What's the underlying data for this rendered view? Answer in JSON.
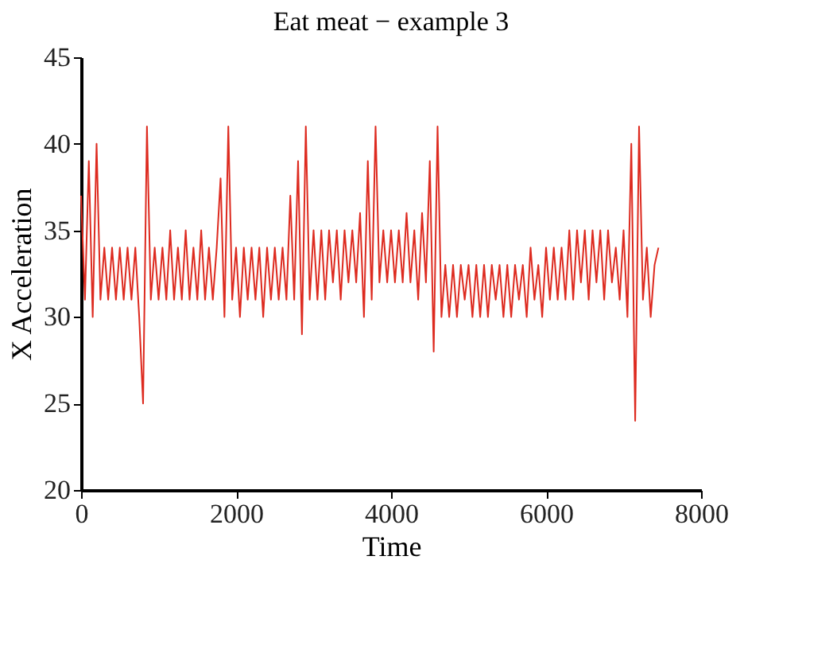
{
  "chart_data": {
    "type": "line",
    "title": "Eat meat − example 3",
    "xlabel": "Time",
    "ylabel": "X Acceleration",
    "x": [
      0,
      50,
      100,
      150,
      200,
      250,
      300,
      350,
      400,
      450,
      500,
      550,
      600,
      650,
      700,
      750,
      800,
      850,
      900,
      950,
      1000,
      1050,
      1100,
      1150,
      1200,
      1250,
      1300,
      1350,
      1400,
      1450,
      1500,
      1550,
      1600,
      1650,
      1700,
      1750,
      1800,
      1850,
      1900,
      1950,
      2000,
      2050,
      2100,
      2150,
      2200,
      2250,
      2300,
      2350,
      2400,
      2450,
      2500,
      2550,
      2600,
      2650,
      2700,
      2750,
      2800,
      2850,
      2900,
      2950,
      3000,
      3050,
      3100,
      3150,
      3200,
      3250,
      3300,
      3350,
      3400,
      3450,
      3500,
      3550,
      3600,
      3650,
      3700,
      3750,
      3800,
      3850,
      3900,
      3950,
      4000,
      4050,
      4100,
      4150,
      4200,
      4250,
      4300,
      4350,
      4400,
      4450,
      4500,
      4550,
      4600,
      4650,
      4700,
      4750,
      4800,
      4850,
      4900,
      4950,
      5000,
      5050,
      5100,
      5150,
      5200,
      5250,
      5300,
      5350,
      5400,
      5450,
      5500,
      5550,
      5600,
      5650,
      5700,
      5750,
      5800,
      5850,
      5900,
      5950,
      6000,
      6050,
      6100,
      6150,
      6200,
      6250,
      6300,
      6350,
      6400,
      6450,
      6500,
      6550,
      6600,
      6650,
      6700,
      6750,
      6800,
      6850,
      6900,
      6950,
      7000,
      7050,
      7100,
      7150,
      7200,
      7250,
      7300,
      7350,
      7400,
      7450
    ],
    "series": [
      {
        "color": "#dd2a1f",
        "values": [
          37,
          31,
          39,
          30,
          40,
          31,
          34,
          31,
          34,
          31,
          34,
          31,
          34,
          31,
          34,
          30,
          25,
          41,
          31,
          34,
          31,
          34,
          31,
          35,
          31,
          34,
          31,
          35,
          31,
          34,
          31,
          35,
          31,
          34,
          31,
          34,
          38,
          30,
          41,
          31,
          34,
          30,
          34,
          31,
          34,
          31,
          34,
          30,
          34,
          31,
          34,
          31,
          34,
          31,
          37,
          31,
          39,
          29,
          41,
          31,
          35,
          31,
          35,
          31,
          35,
          32,
          35,
          31,
          35,
          32,
          35,
          32,
          36,
          30,
          39,
          31,
          41,
          32,
          35,
          32,
          35,
          32,
          35,
          32,
          36,
          32,
          35,
          31,
          36,
          32,
          39,
          28,
          41,
          30,
          33,
          30,
          33,
          30,
          33,
          31,
          33,
          30,
          33,
          30,
          33,
          30,
          33,
          31,
          33,
          30,
          33,
          30,
          33,
          31,
          33,
          30,
          34,
          31,
          33,
          30,
          34,
          31,
          34,
          31,
          34,
          31,
          35,
          31,
          35,
          32,
          35,
          31,
          35,
          32,
          35,
          31,
          35,
          32,
          34,
          31,
          35,
          30,
          40,
          24,
          41,
          31,
          34,
          30,
          33,
          34
        ]
      }
    ],
    "xlim": [
      0,
      8000
    ],
    "xticks": [
      0,
      2000,
      4000,
      6000,
      8000
    ],
    "ylim": [
      20,
      45
    ],
    "yticks": [
      20,
      25,
      30,
      35,
      40,
      45
    ],
    "grid": false,
    "legend": false,
    "marker": "none",
    "line_style": "solid"
  }
}
